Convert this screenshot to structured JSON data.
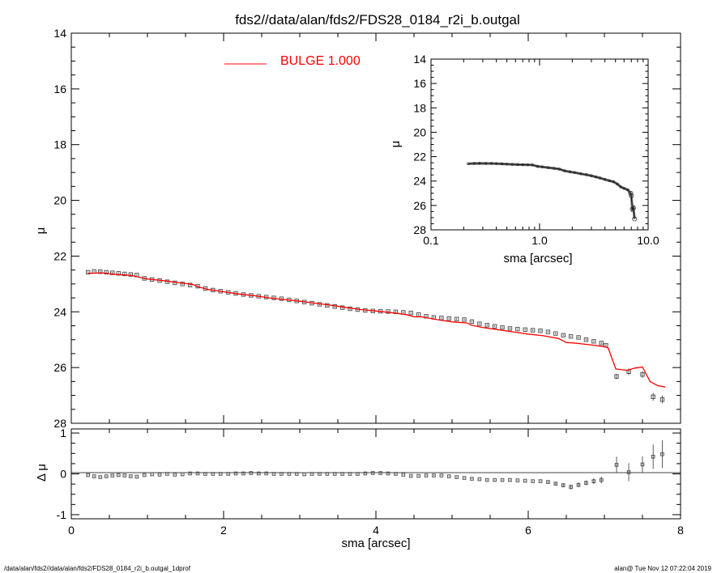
{
  "title": "fds2//data/alan/fds2/FDS28_0184_r2i_b.outgal",
  "footer_left": "/data/alan/fds2//data/alan/fds2/FDS28_0184_r2i_b.outgal_1dprof",
  "footer_right": "alan@  Tue Nov 12 07:22:04 2019",
  "colors": {
    "model": "#ff0000",
    "data": "#555555",
    "axes": "#000000"
  },
  "chart_data": [
    {
      "type": "scatter",
      "panel": "main",
      "xlabel": "sma [arcsec]",
      "ylabel": "μ",
      "xlim": [
        0,
        8
      ],
      "ylim": [
        28,
        14
      ],
      "x_ticks": [
        "0",
        "2",
        "4",
        "6",
        "8"
      ],
      "y_ticks": [
        "14",
        "16",
        "18",
        "20",
        "22",
        "24",
        "26",
        "28"
      ],
      "legend": {
        "label": "BULGE  1.000",
        "placement": "top-center"
      },
      "series": [
        {
          "name": "",
          "role": "data",
          "x": [
            0.22,
            0.3,
            0.38,
            0.46,
            0.54,
            0.62,
            0.7,
            0.78,
            0.86,
            0.96,
            1.06,
            1.16,
            1.26,
            1.36,
            1.46,
            1.56,
            1.66,
            1.76,
            1.86,
            1.96,
            2.06,
            2.16,
            2.26,
            2.36,
            2.46,
            2.56,
            2.66,
            2.76,
            2.86,
            2.96,
            3.06,
            3.16,
            3.26,
            3.36,
            3.46,
            3.56,
            3.66,
            3.76,
            3.86,
            3.96,
            4.06,
            4.16,
            4.26,
            4.36,
            4.46,
            4.56,
            4.66,
            4.76,
            4.86,
            4.96,
            5.06,
            5.16,
            5.26,
            5.36,
            5.46,
            5.56,
            5.66,
            5.76,
            5.86,
            5.96,
            6.06,
            6.16,
            6.26,
            6.36,
            6.46,
            6.56,
            6.66,
            6.76,
            6.86,
            6.96,
            7.02,
            7.16,
            7.32,
            7.5,
            7.64,
            7.76
          ],
          "y": [
            22.58,
            22.55,
            22.56,
            22.58,
            22.6,
            22.62,
            22.64,
            22.66,
            22.68,
            22.8,
            22.84,
            22.88,
            22.92,
            22.96,
            23.0,
            23.04,
            23.08,
            23.16,
            23.22,
            23.26,
            23.3,
            23.34,
            23.38,
            23.41,
            23.44,
            23.47,
            23.5,
            23.53,
            23.57,
            23.61,
            23.65,
            23.69,
            23.73,
            23.77,
            23.81,
            23.85,
            23.89,
            23.92,
            23.95,
            23.97,
            23.98,
            23.99,
            24.0,
            24.02,
            24.04,
            24.1,
            24.16,
            24.2,
            24.22,
            24.24,
            24.26,
            24.28,
            24.35,
            24.43,
            24.48,
            24.52,
            24.56,
            24.6,
            24.62,
            24.64,
            24.66,
            24.68,
            24.72,
            24.78,
            24.84,
            24.88,
            24.92,
            25.0,
            25.06,
            25.12,
            25.2,
            26.32,
            26.15,
            26.25,
            27.05,
            27.15
          ],
          "dy": [
            0.03,
            0.03,
            0.03,
            0.03,
            0.03,
            0.03,
            0.03,
            0.03,
            0.03,
            0.03,
            0.03,
            0.03,
            0.03,
            0.03,
            0.03,
            0.03,
            0.03,
            0.03,
            0.03,
            0.03,
            0.03,
            0.03,
            0.03,
            0.03,
            0.03,
            0.03,
            0.03,
            0.03,
            0.03,
            0.03,
            0.03,
            0.03,
            0.03,
            0.03,
            0.03,
            0.03,
            0.03,
            0.03,
            0.03,
            0.03,
            0.03,
            0.03,
            0.03,
            0.03,
            0.03,
            0.03,
            0.03,
            0.03,
            0.03,
            0.03,
            0.03,
            0.03,
            0.03,
            0.03,
            0.03,
            0.03,
            0.03,
            0.03,
            0.03,
            0.03,
            0.03,
            0.03,
            0.03,
            0.03,
            0.03,
            0.03,
            0.03,
            0.03,
            0.03,
            0.03,
            0.04,
            0.1,
            0.12,
            0.12,
            0.14,
            0.14
          ]
        },
        {
          "name": "BULGE  1.000",
          "role": "model",
          "x": [
            0.22,
            0.4,
            0.6,
            0.8,
            0.86,
            1.0,
            1.2,
            1.4,
            1.6,
            1.66,
            1.8,
            2.0,
            2.2,
            2.4,
            2.6,
            2.8,
            3.0,
            3.2,
            3.4,
            3.6,
            3.8,
            4.0,
            4.2,
            4.4,
            4.5,
            4.6,
            4.8,
            5.0,
            5.2,
            5.25,
            5.4,
            5.6,
            5.8,
            6.0,
            6.2,
            6.4,
            6.5,
            6.6,
            6.8,
            7.0,
            7.05,
            7.15,
            7.3,
            7.4,
            7.5,
            7.6,
            7.7,
            7.8
          ],
          "y": [
            22.62,
            22.6,
            22.66,
            22.7,
            22.74,
            22.82,
            22.88,
            22.95,
            23.02,
            23.1,
            23.2,
            23.28,
            23.36,
            23.42,
            23.5,
            23.56,
            23.62,
            23.69,
            23.76,
            23.84,
            23.92,
            23.97,
            24.03,
            24.1,
            24.18,
            24.18,
            24.28,
            24.36,
            24.4,
            24.48,
            24.56,
            24.64,
            24.72,
            24.8,
            24.86,
            24.96,
            25.1,
            25.12,
            25.18,
            25.25,
            25.3,
            26.05,
            26.1,
            26.02,
            25.98,
            26.5,
            26.65,
            26.7
          ]
        }
      ]
    },
    {
      "type": "scatter",
      "panel": "residual",
      "xlabel": "sma [arcsec]",
      "ylabel": "Δ μ",
      "xlim": [
        0,
        8
      ],
      "ylim": [
        -1.1,
        1.1
      ],
      "y_ticks": [
        "1",
        "0",
        "-1"
      ],
      "series": [
        {
          "name": "",
          "x": [
            0.22,
            0.3,
            0.38,
            0.46,
            0.54,
            0.62,
            0.7,
            0.78,
            0.86,
            0.96,
            1.06,
            1.16,
            1.26,
            1.36,
            1.46,
            1.56,
            1.66,
            1.76,
            1.86,
            1.96,
            2.06,
            2.16,
            2.26,
            2.36,
            2.46,
            2.56,
            2.66,
            2.76,
            2.86,
            2.96,
            3.06,
            3.16,
            3.26,
            3.36,
            3.46,
            3.56,
            3.66,
            3.76,
            3.86,
            3.96,
            4.06,
            4.16,
            4.26,
            4.36,
            4.46,
            4.56,
            4.66,
            4.76,
            4.86,
            4.96,
            5.06,
            5.16,
            5.26,
            5.36,
            5.46,
            5.56,
            5.66,
            5.76,
            5.86,
            5.96,
            6.06,
            6.16,
            6.26,
            6.36,
            6.46,
            6.56,
            6.66,
            6.76,
            6.86,
            6.96,
            7.16,
            7.32,
            7.5,
            7.64,
            7.76
          ],
          "y": [
            -0.03,
            -0.06,
            -0.08,
            -0.06,
            -0.04,
            -0.03,
            -0.04,
            -0.06,
            -0.07,
            -0.03,
            -0.01,
            -0.02,
            0.0,
            -0.02,
            -0.01,
            0.01,
            0.01,
            0.0,
            0.0,
            0.0,
            0.0,
            0.01,
            0.01,
            0.02,
            0.01,
            0.01,
            0.0,
            0.0,
            0.0,
            0.0,
            -0.01,
            0.0,
            0.0,
            0.0,
            0.0,
            0.0,
            0.0,
            0.0,
            0.01,
            0.02,
            0.02,
            0.01,
            0.0,
            -0.02,
            -0.05,
            -0.05,
            -0.04,
            -0.04,
            -0.04,
            -0.06,
            -0.08,
            -0.1,
            -0.12,
            -0.13,
            -0.15,
            -0.15,
            -0.15,
            -0.15,
            -0.16,
            -0.17,
            -0.18,
            -0.18,
            -0.2,
            -0.24,
            -0.28,
            -0.32,
            -0.27,
            -0.22,
            -0.18,
            -0.15,
            0.22,
            0.04,
            0.23,
            0.42,
            0.48
          ],
          "dy": [
            0.01,
            0.01,
            0.01,
            0.01,
            0.01,
            0.01,
            0.01,
            0.01,
            0.01,
            0.01,
            0.01,
            0.01,
            0.01,
            0.01,
            0.01,
            0.01,
            0.01,
            0.01,
            0.01,
            0.01,
            0.01,
            0.01,
            0.01,
            0.01,
            0.01,
            0.01,
            0.01,
            0.01,
            0.01,
            0.01,
            0.01,
            0.01,
            0.01,
            0.01,
            0.01,
            0.01,
            0.01,
            0.01,
            0.01,
            0.01,
            0.01,
            0.01,
            0.01,
            0.01,
            0.01,
            0.01,
            0.01,
            0.01,
            0.01,
            0.01,
            0.01,
            0.01,
            0.01,
            0.01,
            0.01,
            0.01,
            0.01,
            0.01,
            0.01,
            0.01,
            0.01,
            0.01,
            0.02,
            0.04,
            0.05,
            0.06,
            0.06,
            0.06,
            0.07,
            0.08,
            0.2,
            0.22,
            0.2,
            0.3,
            0.34
          ]
        }
      ]
    },
    {
      "type": "scatter",
      "panel": "inset",
      "xlabel": "sma [arcsec]",
      "ylabel": "μ",
      "xscale": "log",
      "xlim": [
        0.1,
        10
      ],
      "ylim": [
        28,
        14
      ],
      "x_ticks": [
        "0.1",
        "1.0",
        "10.0"
      ],
      "y_ticks": [
        "14",
        "16",
        "18",
        "20",
        "22",
        "24",
        "26",
        "28"
      ],
      "series": [
        {
          "name": "",
          "x": [
            0.22,
            0.25,
            0.28,
            0.32,
            0.36,
            0.4,
            0.45,
            0.5,
            0.56,
            0.63,
            0.7,
            0.78,
            0.86,
            0.96,
            1.06,
            1.2,
            1.36,
            1.52,
            1.7,
            1.9,
            2.1,
            2.4,
            2.7,
            3.0,
            3.3,
            3.6,
            4.0,
            4.4,
            4.8,
            5.2,
            5.6,
            6.0,
            6.5,
            6.9,
            7.0,
            7.16,
            7.32,
            7.5
          ],
          "y": [
            22.58,
            22.56,
            22.55,
            22.56,
            22.56,
            22.57,
            22.59,
            22.61,
            22.63,
            22.65,
            22.66,
            22.67,
            22.68,
            22.8,
            22.84,
            22.9,
            22.96,
            23.02,
            23.16,
            23.24,
            23.3,
            23.4,
            23.48,
            23.57,
            23.66,
            23.75,
            23.87,
            23.97,
            24.06,
            24.24,
            24.48,
            24.6,
            24.72,
            25.0,
            25.2,
            26.3,
            26.2,
            27.1
          ]
        }
      ]
    }
  ]
}
